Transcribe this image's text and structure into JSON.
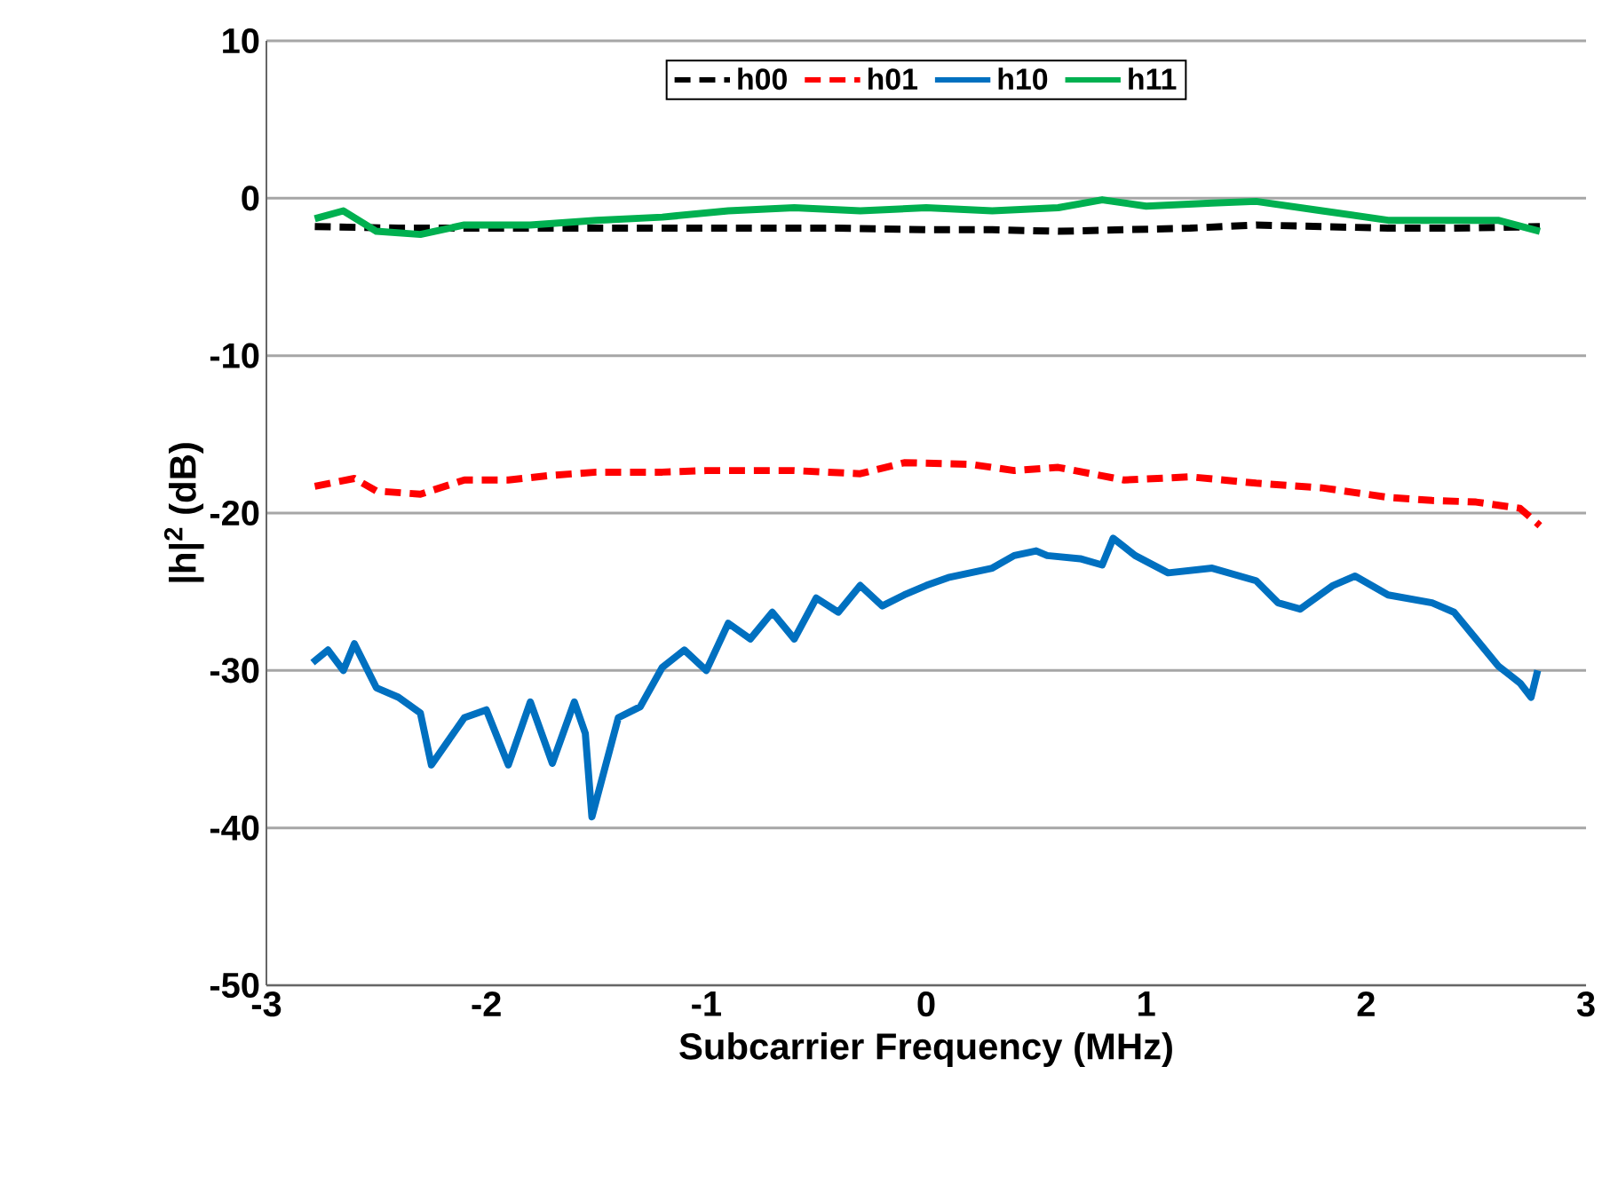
{
  "chart_data": {
    "type": "line",
    "xlabel": "Subcarrier Frequency (MHz)",
    "ylabel": "|h|$^{2}$ (dB)",
    "xlim": [
      -3,
      3
    ],
    "xticks": [
      -3,
      -2,
      -1,
      0,
      1,
      2,
      3
    ],
    "ylim": [
      -50,
      10
    ],
    "yticks": [
      -50,
      -40,
      -30,
      -20,
      -10,
      0,
      10
    ],
    "grid": "y",
    "legend": "top",
    "marker": "none",
    "series": [
      {
        "name": "h00",
        "color": "#000000",
        "line_style": "dashed",
        "x": [
          -2.78,
          -2.4,
          -2.0,
          -1.6,
          -1.2,
          -0.8,
          -0.4,
          0,
          0.3,
          0.6,
          0.9,
          1.2,
          1.5,
          1.8,
          2.1,
          2.4,
          2.79
        ],
        "values": [
          -1.8,
          -1.9,
          -1.9,
          -1.9,
          -1.9,
          -1.9,
          -1.9,
          -2.0,
          -2.0,
          -2.1,
          -2.0,
          -1.9,
          -1.7,
          -1.8,
          -1.9,
          -1.9,
          -1.8
        ]
      },
      {
        "name": "h01",
        "color": "#ff0000",
        "line_style": "dashed",
        "x": [
          -2.78,
          -2.6,
          -2.5,
          -2.3,
          -2.1,
          -1.9,
          -1.7,
          -1.5,
          -1.2,
          -1.0,
          -0.6,
          -0.3,
          -0.1,
          0.2,
          0.4,
          0.6,
          0.9,
          1.2,
          1.5,
          1.8,
          2.1,
          2.3,
          2.5,
          2.7,
          2.79
        ],
        "values": [
          -18.3,
          -17.8,
          -18.6,
          -18.8,
          -17.9,
          -17.9,
          -17.6,
          -17.4,
          -17.4,
          -17.3,
          -17.3,
          -17.5,
          -16.8,
          -16.9,
          -17.3,
          -17.1,
          -17.9,
          -17.7,
          -18.1,
          -18.4,
          -19.0,
          -19.2,
          -19.3,
          -19.7,
          -20.8
        ]
      },
      {
        "name": "h10",
        "color": "#0070c0",
        "line_style": "solid",
        "x": [
          -2.79,
          -2.72,
          -2.65,
          -2.6,
          -2.5,
          -2.4,
          -2.3,
          -2.25,
          -2.1,
          -2.0,
          -1.9,
          -1.8,
          -1.7,
          -1.6,
          -1.55,
          -1.52,
          -1.4,
          -1.3,
          -1.2,
          -1.1,
          -1.0,
          -0.9,
          -0.8,
          -0.7,
          -0.6,
          -0.5,
          -0.4,
          -0.3,
          -0.2,
          -0.1,
          0,
          0.1,
          0.2,
          0.3,
          0.4,
          0.5,
          0.55,
          0.7,
          0.8,
          0.85,
          0.95,
          1.1,
          1.3,
          1.5,
          1.6,
          1.7,
          1.85,
          1.95,
          2.1,
          2.3,
          2.4,
          2.5,
          2.6,
          2.7,
          2.75,
          2.78
        ],
        "values": [
          -29.5,
          -28.7,
          -30,
          -28.3,
          -31.1,
          -31.7,
          -32.7,
          -36,
          -33,
          -32.5,
          -36,
          -32,
          -35.9,
          -32,
          -34,
          -39.3,
          -33,
          -32.3,
          -29.8,
          -28.7,
          -30,
          -27,
          -28,
          -26.3,
          -28,
          -25.4,
          -26.3,
          -24.6,
          -25.9,
          -25.2,
          -24.6,
          -24.1,
          -23.8,
          -23.5,
          -22.7,
          -22.4,
          -22.7,
          -22.9,
          -23.3,
          -21.6,
          -22.7,
          -23.8,
          -23.5,
          -24.3,
          -25.7,
          -26.1,
          -24.6,
          -24,
          -25.2,
          -25.7,
          -26.3,
          -28,
          -29.7,
          -30.8,
          -31.7,
          -30
        ]
      },
      {
        "name": "h11",
        "color": "#00b050",
        "line_style": "solid",
        "x": [
          -2.78,
          -2.65,
          -2.5,
          -2.3,
          -2.1,
          -1.8,
          -1.5,
          -1.2,
          -0.9,
          -0.6,
          -0.3,
          0,
          0.3,
          0.6,
          0.8,
          1.0,
          1.3,
          1.5,
          1.8,
          2.1,
          2.4,
          2.6,
          2.79
        ],
        "values": [
          -1.3,
          -0.8,
          -2.1,
          -2.3,
          -1.7,
          -1.7,
          -1.4,
          -1.2,
          -0.8,
          -0.6,
          -0.8,
          -0.6,
          -0.8,
          -0.6,
          -0.1,
          -0.5,
          -0.3,
          -0.2,
          -0.8,
          -1.4,
          -1.4,
          -1.4,
          -2.1
        ]
      }
    ]
  }
}
